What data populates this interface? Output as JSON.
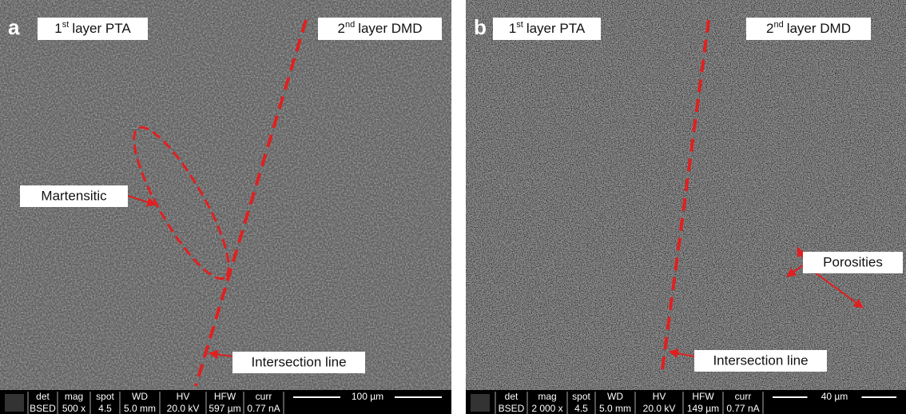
{
  "panels": [
    {
      "letter": "a",
      "left_label": {
        "num": "1",
        "sup": "st",
        "text": "layer PTA"
      },
      "right_label": {
        "num": "2",
        "sup": "nd",
        "text": "layer DMD"
      },
      "annotations": [
        "Martensitic",
        "Intersection line"
      ],
      "info": {
        "headers": [
          "det",
          "mag",
          "spot",
          "WD",
          "HV",
          "HFW",
          "curr"
        ],
        "values": [
          "BSED",
          "500 x",
          "4.5",
          "5.0 mm",
          "20.0 kV",
          "597 µm",
          "0.77 nA"
        ],
        "scale": "100 µm"
      }
    },
    {
      "letter": "b",
      "left_label": {
        "num": "1",
        "sup": "st",
        "text": "layer PTA"
      },
      "right_label": {
        "num": "2",
        "sup": "nd",
        "text": "layer DMD"
      },
      "annotations": [
        "Porosities",
        "Intersection line"
      ],
      "info": {
        "headers": [
          "det",
          "mag",
          "spot",
          "WD",
          "HV",
          "HFW",
          "curr"
        ],
        "values": [
          "BSED",
          "2 000 x",
          "4.5",
          "5.0 mm",
          "20.0 kV",
          "149 µm",
          "0.77 nA"
        ],
        "scale": "40 µm"
      }
    }
  ]
}
